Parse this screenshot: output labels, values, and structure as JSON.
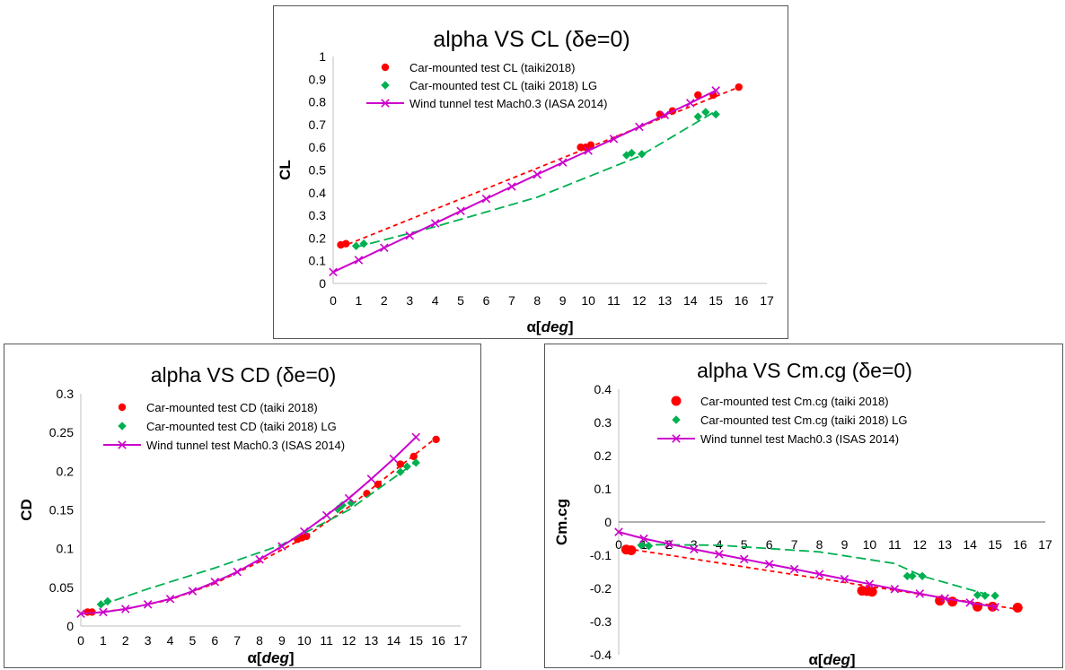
{
  "colors": {
    "red": "#ff0000",
    "green": "#00b050",
    "magenta": "#cc00cc",
    "axis": "#bfbfbf",
    "zero": "#808080"
  },
  "chart_data": [
    {
      "type": "scatter",
      "title": "alpha VS CL (δe=0)",
      "xlabel_main": "α[",
      "xlabel_unit": "deg",
      "xlabel_end": "]",
      "ylabel": "CL",
      "xlim": [
        0,
        17
      ],
      "ylim": [
        0,
        1
      ],
      "x_ticks": [
        "0",
        "1",
        "2",
        "3",
        "4",
        "5",
        "6",
        "7",
        "8",
        "9",
        "10",
        "11",
        "12",
        "13",
        "14",
        "15",
        "16",
        "17"
      ],
      "y_ticks": [
        "0",
        "0.1",
        "0.2",
        "0.3",
        "0.4",
        "0.5",
        "0.6",
        "0.7",
        "0.8",
        "0.9",
        "1"
      ],
      "legend_position": "top-left",
      "series": [
        {
          "name": "Car-mounted test CL (taiki2018)",
          "marker": "circle",
          "color": "#ff0000",
          "x": [
            0.3,
            0.5,
            9.7,
            9.9,
            10.1,
            12.8,
            13.3,
            14.3,
            14.9,
            15.9
          ],
          "y": [
            0.17,
            0.175,
            0.6,
            0.6,
            0.61,
            0.745,
            0.76,
            0.83,
            0.83,
            0.865
          ],
          "trend": {
            "style": "dash",
            "x": [
              0.3,
              15.9
            ],
            "y": [
              0.16,
              0.865
            ]
          }
        },
        {
          "name": "Car-mounted test CL (taiki 2018) LG",
          "marker": "diamond",
          "color": "#00b050",
          "x": [
            0.9,
            1.2,
            11.5,
            11.7,
            12.1,
            14.3,
            14.6,
            15.0
          ],
          "y": [
            0.165,
            0.175,
            0.565,
            0.575,
            0.57,
            0.735,
            0.755,
            0.745
          ],
          "trend": {
            "style": "longdash",
            "x": [
              0.9,
              4,
              8,
              12,
              15
            ],
            "y": [
              0.16,
              0.25,
              0.38,
              0.56,
              0.76
            ]
          }
        },
        {
          "name": "Wind tunnel test Mach0.3 (IASA 2014)",
          "marker": "x",
          "color": "#cc00cc",
          "line": true,
          "x": [
            0,
            1,
            2,
            3,
            4,
            5,
            6,
            7,
            8,
            9,
            10,
            11,
            12,
            13,
            14,
            15
          ],
          "y": [
            0.05,
            0.103,
            0.157,
            0.211,
            0.265,
            0.319,
            0.373,
            0.427,
            0.48,
            0.533,
            0.585,
            0.637,
            0.69,
            0.742,
            0.795,
            0.85
          ]
        }
      ]
    },
    {
      "type": "scatter",
      "title": "alpha VS CD (δe=0)",
      "xlabel_main": "α[",
      "xlabel_unit": "deg",
      "xlabel_end": "]",
      "ylabel": "CD",
      "xlim": [
        0,
        17
      ],
      "ylim": [
        0,
        0.3
      ],
      "x_ticks": [
        "0",
        "1",
        "2",
        "3",
        "4",
        "5",
        "6",
        "7",
        "8",
        "9",
        "10",
        "11",
        "12",
        "13",
        "14",
        "15",
        "16",
        "17"
      ],
      "y_ticks": [
        "0",
        "0.05",
        "0.1",
        "0.15",
        "0.2",
        "0.25",
        "0.3"
      ],
      "legend_position": "top-left",
      "series": [
        {
          "name": "Car-mounted test CD (taiki 2018)",
          "marker": "circle",
          "color": "#ff0000",
          "x": [
            0.3,
            0.5,
            9.7,
            9.9,
            10.1,
            12.8,
            13.3,
            14.3,
            14.9,
            15.9
          ],
          "y": [
            0.018,
            0.018,
            0.112,
            0.114,
            0.116,
            0.171,
            0.183,
            0.209,
            0.219,
            0.241
          ],
          "trend": {
            "style": "dash",
            "x": [
              0.3,
              2,
              4,
              6,
              8,
              10,
              12,
              14,
              15.9
            ],
            "y": [
              0.016,
              0.022,
              0.034,
              0.055,
              0.083,
              0.114,
              0.154,
              0.2,
              0.243
            ]
          }
        },
        {
          "name": "Car-mounted test CD (taiki 2018) LG",
          "marker": "diamond",
          "color": "#00b050",
          "x": [
            0.9,
            1.2,
            11.5,
            11.7,
            12.1,
            14.3,
            14.6,
            15.0
          ],
          "y": [
            0.028,
            0.032,
            0.151,
            0.156,
            0.159,
            0.199,
            0.206,
            0.211
          ],
          "trend": {
            "style": "longdash",
            "x": [
              0.9,
              3,
              6,
              9,
              12,
              15
            ],
            "y": [
              0.027,
              0.048,
              0.075,
              0.105,
              0.15,
              0.212
            ]
          }
        },
        {
          "name": "Wind tunnel test Mach0.3 (ISAS 2014)",
          "marker": "x",
          "color": "#cc00cc",
          "line": true,
          "x": [
            0,
            1,
            2,
            3,
            4,
            5,
            6,
            7,
            8,
            9,
            10,
            11,
            12,
            13,
            14,
            15
          ],
          "y": [
            0.016,
            0.018,
            0.022,
            0.028,
            0.035,
            0.045,
            0.057,
            0.07,
            0.086,
            0.103,
            0.122,
            0.143,
            0.165,
            0.19,
            0.216,
            0.244
          ]
        }
      ]
    },
    {
      "type": "scatter",
      "title": "alpha VS Cm.cg (δe=0)",
      "xlabel_main": "α[",
      "xlabel_unit": "deg",
      "xlabel_end": "]",
      "ylabel": "Cm.cg",
      "xlim": [
        0,
        17
      ],
      "ylim": [
        -0.4,
        0.4
      ],
      "x_ticks": [
        "0",
        "1",
        "2",
        "3",
        "4",
        "5",
        "6",
        "7",
        "8",
        "9",
        "10",
        "11",
        "12",
        "13",
        "14",
        "15",
        "16",
        "17"
      ],
      "y_ticks": [
        "-0.4",
        "-0.3",
        "-0.2",
        "-0.1",
        "0",
        "0.1",
        "0.2",
        "0.3",
        "0.4"
      ],
      "legend_position": "top-left",
      "series": [
        {
          "name": "Car-mounted test Cm.cg (taiki 2018)",
          "marker": "circle",
          "color": "#ff0000",
          "x": [
            0.3,
            0.5,
            9.7,
            9.9,
            10.1,
            12.8,
            13.3,
            14.3,
            14.9,
            15.9
          ],
          "y": [
            -0.083,
            -0.085,
            -0.207,
            -0.208,
            -0.21,
            -0.237,
            -0.24,
            -0.255,
            -0.255,
            -0.258
          ],
          "trend": {
            "style": "dash",
            "x": [
              0.3,
              15.9
            ],
            "y": [
              -0.08,
              -0.263
            ]
          }
        },
        {
          "name": "Car-mounted test Cm.cg (taiki 2018) LG",
          "marker": "diamond",
          "color": "#00b050",
          "x": [
            0.9,
            1.2,
            11.5,
            11.7,
            12.1,
            14.3,
            14.6,
            15.0
          ],
          "y": [
            -0.07,
            -0.072,
            -0.163,
            -0.163,
            -0.163,
            -0.22,
            -0.222,
            -0.222
          ],
          "trend": {
            "style": "longdash",
            "x": [
              0.9,
              4,
              8,
              11,
              12.1,
              15
            ],
            "y": [
              -0.068,
              -0.07,
              -0.09,
              -0.125,
              -0.163,
              -0.225
            ]
          }
        },
        {
          "name": "Wind tunnel test Mach0.3 (ISAS 2014)",
          "marker": "x",
          "color": "#cc00cc",
          "line": true,
          "x": [
            0,
            1,
            2,
            3,
            4,
            5,
            6,
            7,
            8,
            9,
            10,
            11,
            12,
            13,
            14,
            15
          ],
          "y": [
            -0.03,
            -0.05,
            -0.066,
            -0.082,
            -0.097,
            -0.112,
            -0.127,
            -0.142,
            -0.157,
            -0.172,
            -0.187,
            -0.202,
            -0.216,
            -0.23,
            -0.243,
            -0.256
          ]
        }
      ]
    }
  ]
}
